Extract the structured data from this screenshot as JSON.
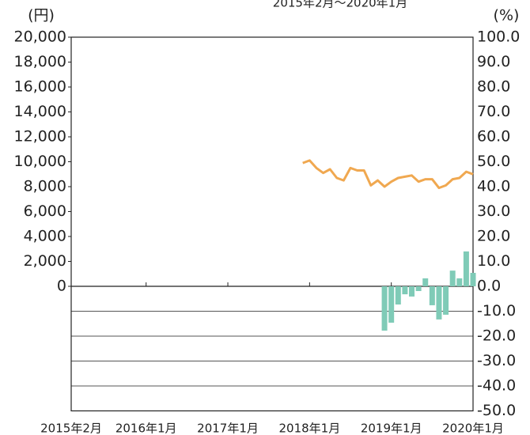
{
  "chart_data": {
    "type": "combo",
    "subtitle": "2015年2月～2020年1月",
    "y_unit": "(円)",
    "y2_unit": "(%)",
    "categories": [
      "2015年2月",
      null,
      null,
      null,
      null,
      null,
      null,
      null,
      null,
      null,
      null,
      "2016年1月",
      null,
      null,
      null,
      null,
      null,
      null,
      null,
      null,
      null,
      null,
      null,
      "2017年1月",
      null,
      null,
      null,
      null,
      null,
      null,
      null,
      null,
      null,
      null,
      null,
      "2018年1月",
      null,
      null,
      null,
      null,
      null,
      null,
      null,
      null,
      null,
      null,
      null,
      "2019年1月",
      null,
      null,
      null,
      null,
      null,
      null,
      null,
      null,
      null,
      null,
      null,
      "2020年1月"
    ],
    "series": [
      {
        "type": "bar",
        "axis": "y2",
        "color": "#7fcbb7",
        "values": [
          null,
          null,
          null,
          null,
          null,
          null,
          null,
          null,
          null,
          null,
          null,
          null,
          null,
          null,
          null,
          null,
          null,
          null,
          null,
          null,
          null,
          null,
          null,
          null,
          null,
          null,
          null,
          null,
          null,
          null,
          null,
          null,
          null,
          null,
          null,
          null,
          null,
          null,
          null,
          null,
          null,
          null,
          null,
          null,
          null,
          null,
          -17.8,
          -14.6,
          -7.3,
          -3.2,
          -4.1,
          -1.9,
          3.2,
          -7.6,
          -13.3,
          -11.4,
          6.3,
          3.2,
          14,
          5.4
        ]
      },
      {
        "type": "line",
        "axis": "y",
        "color": "#f0a850",
        "values": [
          null,
          null,
          null,
          null,
          null,
          null,
          null,
          null,
          null,
          null,
          null,
          null,
          null,
          null,
          null,
          null,
          null,
          null,
          null,
          null,
          null,
          null,
          null,
          null,
          null,
          null,
          null,
          null,
          null,
          null,
          null,
          null,
          null,
          null,
          9900,
          10100,
          9500,
          9100,
          9400,
          8700,
          8500,
          9500,
          9300,
          9300,
          8100,
          8500,
          8000,
          8400,
          8700,
          8800,
          8900,
          8400,
          8600,
          8600,
          7900,
          8100,
          8600,
          8700,
          9200,
          9000
        ]
      }
    ],
    "ylim": [
      -10000,
      20000
    ],
    "yticks": [
      0,
      {
        "value": 2000,
        "label": "2,000"
      },
      {
        "value": 4000,
        "label": "4,000"
      },
      {
        "value": 6000,
        "label": "6,000"
      },
      {
        "value": 8000,
        "label": "8,000"
      },
      {
        "value": 10000,
        "label": "10,000"
      },
      {
        "value": 12000,
        "label": "12,000"
      },
      {
        "value": 14000,
        "label": "14,000"
      },
      {
        "value": 16000,
        "label": "16,000"
      },
      {
        "value": 18000,
        "label": "18,000"
      },
      {
        "value": 20000,
        "label": "20,000"
      }
    ],
    "y2lim": [
      -50,
      100
    ],
    "y2ticks": [
      {
        "value": 100,
        "label": "100.0"
      },
      {
        "value": 90,
        "label": "90.0"
      },
      {
        "value": 80,
        "label": "80.0"
      },
      {
        "value": 70,
        "label": "70.0"
      },
      {
        "value": 60,
        "label": "60.0"
      },
      {
        "value": 50,
        "label": "50.0"
      },
      {
        "value": 40,
        "label": "40.0"
      },
      {
        "value": 30,
        "label": "30.0"
      },
      {
        "value": 20,
        "label": "20.0"
      },
      {
        "value": 10,
        "label": "10.0"
      },
      {
        "value": 0,
        "label": "0.0"
      },
      {
        "value": -10,
        "label": "-10.0"
      },
      {
        "value": -20,
        "label": "-20.0"
      },
      {
        "value": -30,
        "label": "-30.0"
      },
      {
        "value": -40,
        "label": "-40.0"
      },
      {
        "value": -50,
        "label": "-50.0"
      }
    ]
  }
}
